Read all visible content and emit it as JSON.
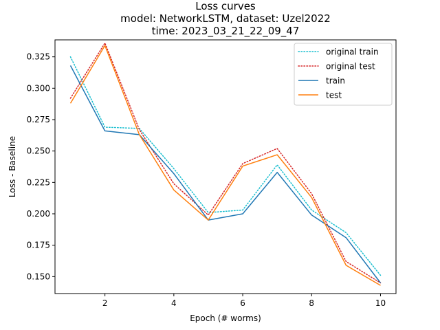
{
  "chart_data": {
    "type": "line",
    "title_lines": [
      "Loss curves",
      "model: NetworkLSTM, dataset: Uzel2022",
      "time: 2023_03_21_22_09_47"
    ],
    "xlabel": "Epoch (# worms)",
    "ylabel": "Loss - Baseline",
    "xlim": [
      0.55,
      10.45
    ],
    "ylim": [
      0.1365,
      0.3385
    ],
    "xticks": [
      2,
      4,
      6,
      8,
      10
    ],
    "xtick_labels": [
      "2",
      "4",
      "6",
      "8",
      "10"
    ],
    "yticks": [
      0.15,
      0.175,
      0.2,
      0.225,
      0.25,
      0.275,
      0.3,
      0.325
    ],
    "ytick_labels": [
      "0.150",
      "0.175",
      "0.200",
      "0.225",
      "0.250",
      "0.275",
      "0.300",
      "0.325"
    ],
    "grid": false,
    "legend_position": "top-right",
    "x": [
      1,
      2,
      3,
      4,
      5,
      6,
      7,
      8,
      9,
      10
    ],
    "series": [
      {
        "name": "original train",
        "color": "#17becf",
        "style": "dotted",
        "values": [
          0.325,
          0.269,
          0.268,
          0.236,
          0.201,
          0.203,
          0.239,
          0.203,
          0.185,
          0.151
        ]
      },
      {
        "name": "original test",
        "color": "#d62728",
        "style": "dotted",
        "values": [
          0.292,
          0.336,
          0.267,
          0.224,
          0.199,
          0.24,
          0.252,
          0.216,
          0.162,
          0.145
        ]
      },
      {
        "name": "train",
        "color": "#1f77b4",
        "style": "solid",
        "values": [
          0.318,
          0.266,
          0.263,
          0.232,
          0.195,
          0.2,
          0.233,
          0.199,
          0.181,
          0.145
        ]
      },
      {
        "name": "test",
        "color": "#ff7f0e",
        "style": "solid",
        "values": [
          0.288,
          0.334,
          0.263,
          0.219,
          0.195,
          0.238,
          0.247,
          0.213,
          0.159,
          0.143
        ]
      }
    ]
  }
}
